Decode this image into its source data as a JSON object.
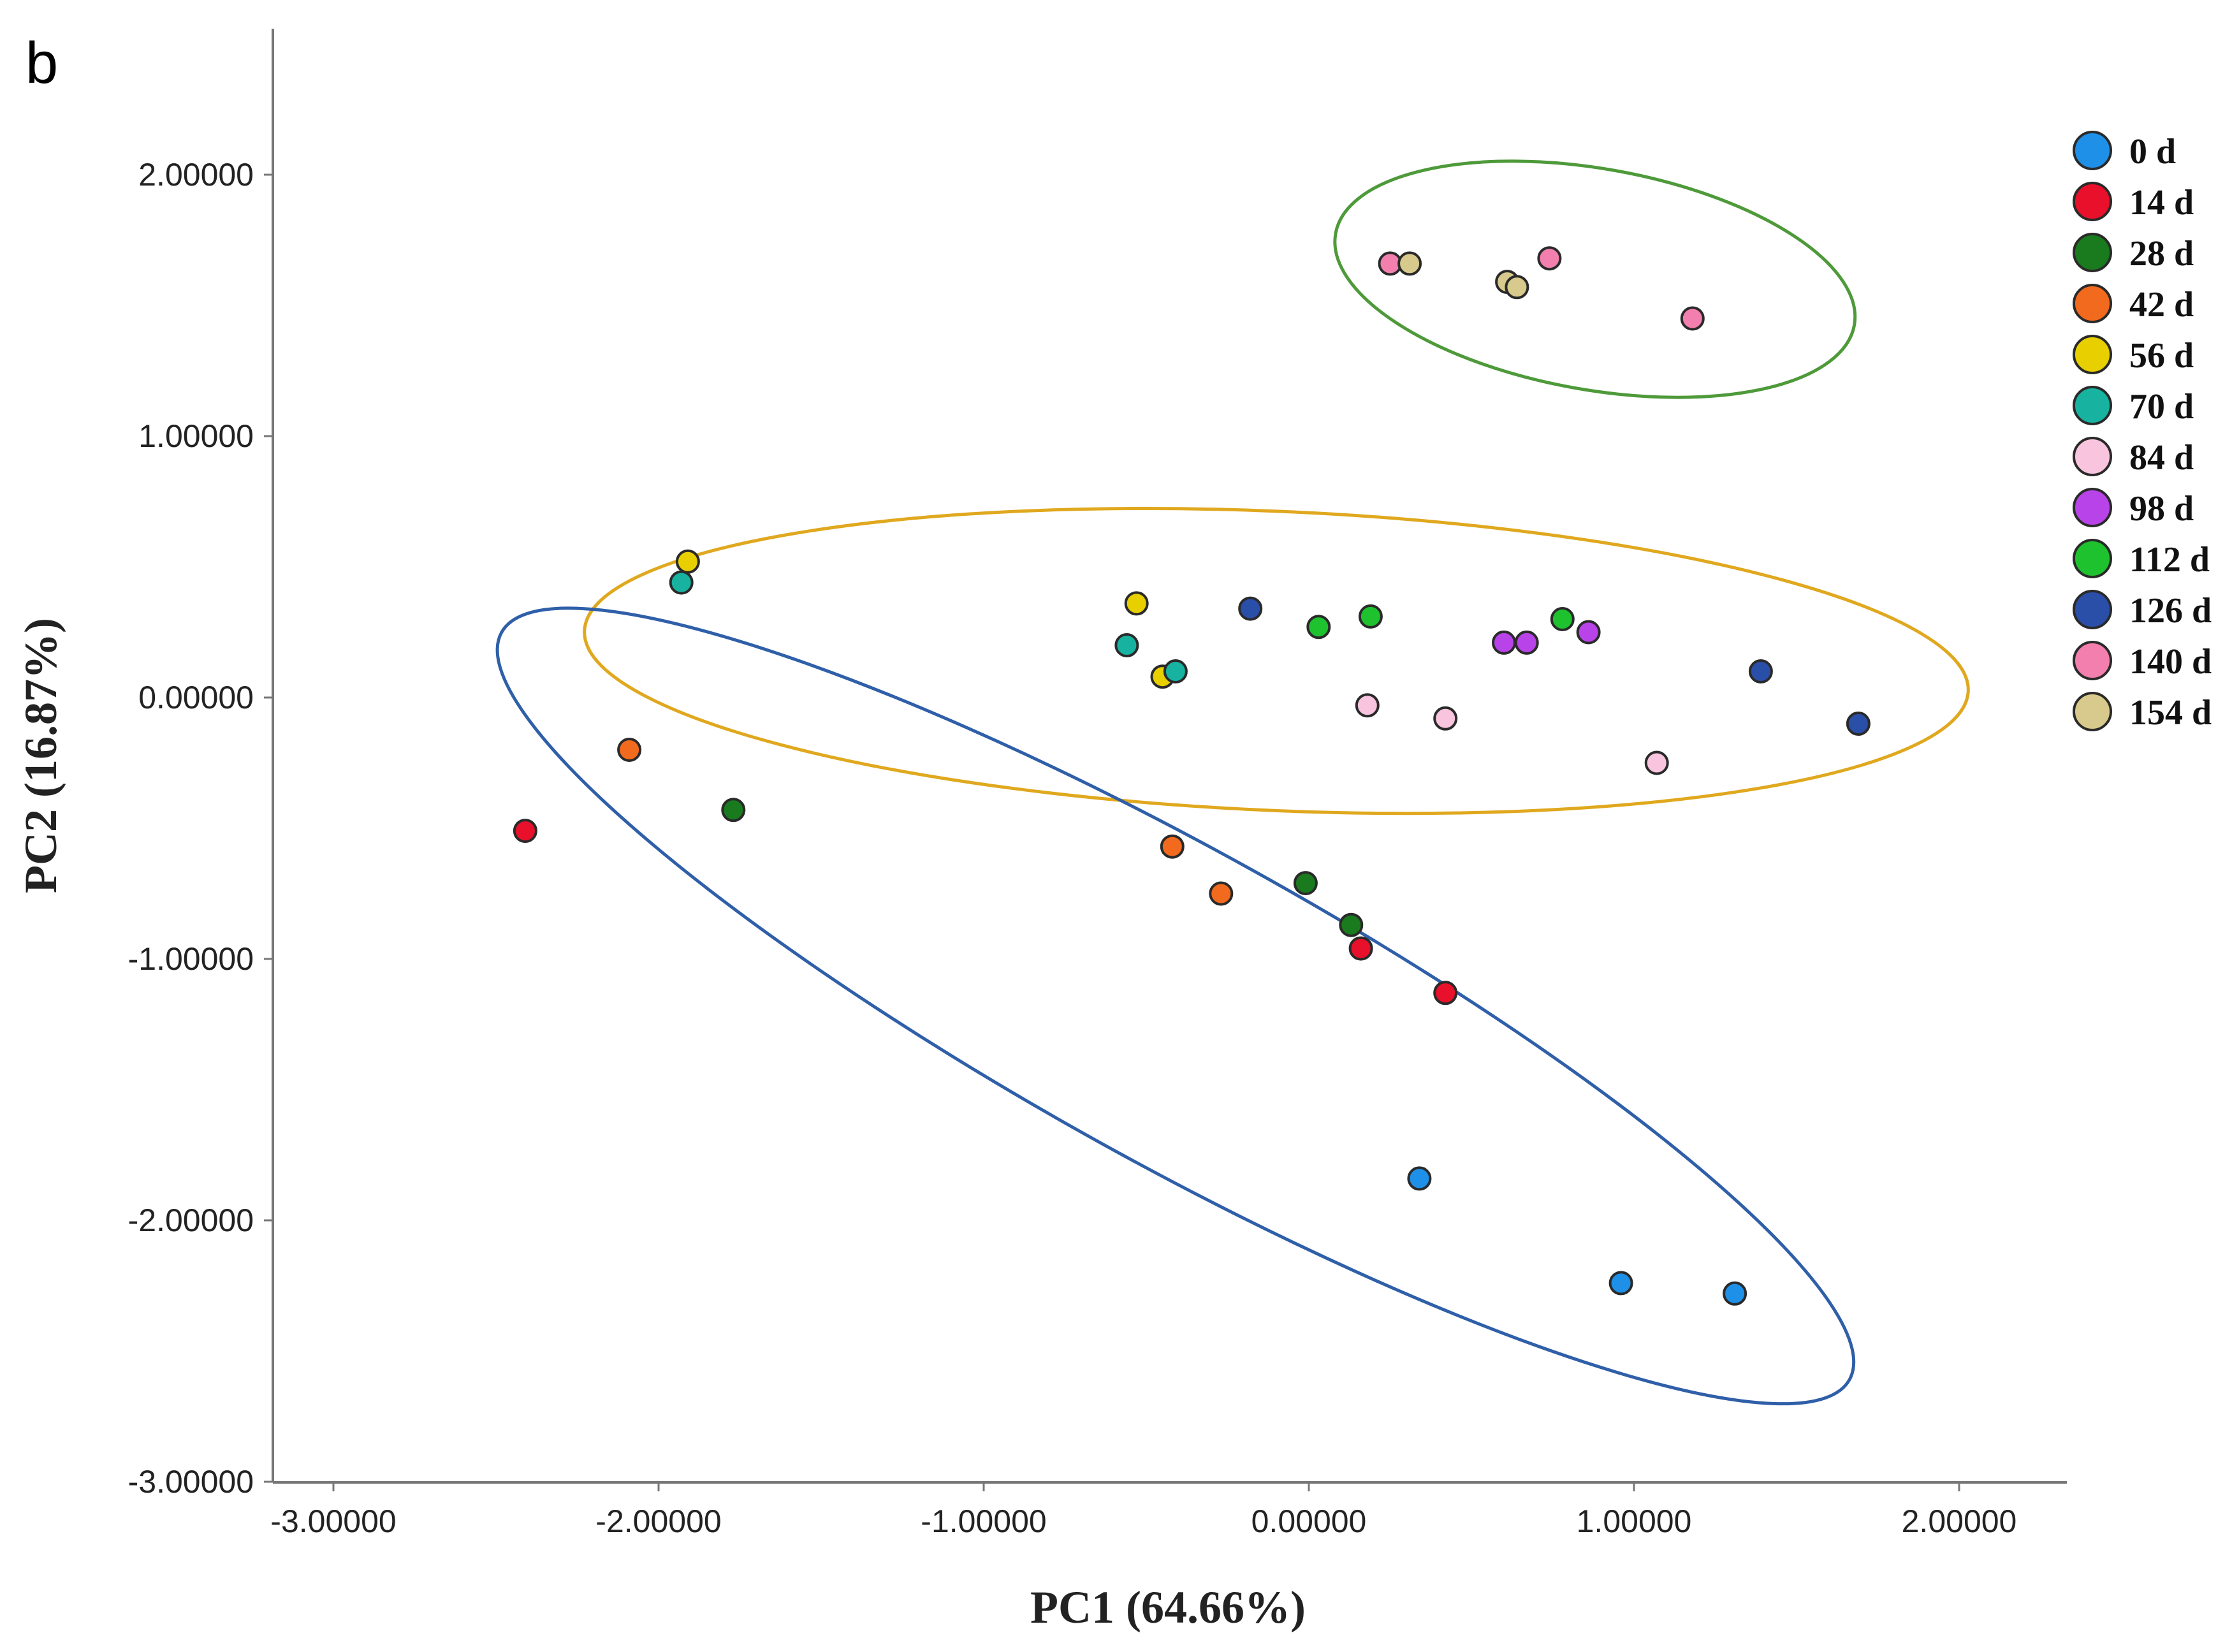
{
  "panel_label": "b",
  "chart_data": {
    "type": "scatter",
    "title": "",
    "xlabel": "PC1 (64.66%)",
    "ylabel": "PC2 (16.87%)",
    "xlim": [
      -3.3,
      2.3
    ],
    "ylim": [
      -3.0,
      2.55
    ],
    "x_ticks": [
      {
        "value": -3,
        "label": "-3.00000"
      },
      {
        "value": -2,
        "label": "-2.00000"
      },
      {
        "value": -1,
        "label": "-1.00000"
      },
      {
        "value": 0,
        "label": "0.00000"
      },
      {
        "value": 1,
        "label": "1.00000"
      },
      {
        "value": 2,
        "label": "2.00000"
      }
    ],
    "y_ticks": [
      {
        "value": 2,
        "label": "2.00000"
      },
      {
        "value": 1,
        "label": "1.00000"
      },
      {
        "value": 0,
        "label": "0.00000"
      },
      {
        "value": -1,
        "label": "-1.00000"
      },
      {
        "value": -2,
        "label": "-2.00000"
      },
      {
        "value": -3,
        "label": "-3.00000"
      }
    ],
    "grid": false,
    "legend_position": "top-right",
    "series": [
      {
        "name": "0 d",
        "color": "#1E90E8",
        "points": [
          [
            0.34,
            -1.84
          ],
          [
            0.96,
            -2.24
          ],
          [
            1.31,
            -2.28
          ]
        ]
      },
      {
        "name": "14 d",
        "color": "#E8102A",
        "points": [
          [
            -2.41,
            -0.51
          ],
          [
            0.16,
            -0.96
          ],
          [
            0.42,
            -1.13
          ]
        ]
      },
      {
        "name": "28 d",
        "color": "#1A7A1E",
        "points": [
          [
            -1.77,
            -0.43
          ],
          [
            -0.01,
            -0.71
          ],
          [
            0.13,
            -0.87
          ]
        ]
      },
      {
        "name": "42 d",
        "color": "#F26A1E",
        "points": [
          [
            -2.09,
            -0.2
          ],
          [
            -0.42,
            -0.57
          ],
          [
            -0.27,
            -0.75
          ]
        ]
      },
      {
        "name": "56 d",
        "color": "#E8D000",
        "points": [
          [
            -1.91,
            0.52
          ],
          [
            -0.53,
            0.36
          ],
          [
            -0.45,
            0.08
          ]
        ]
      },
      {
        "name": "70 d",
        "color": "#17B3A0",
        "points": [
          [
            -1.93,
            0.44
          ],
          [
            -0.56,
            0.2
          ],
          [
            -0.41,
            0.1
          ]
        ]
      },
      {
        "name": "84 d",
        "color": "#F9C4DE",
        "points": [
          [
            0.18,
            -0.03
          ],
          [
            0.42,
            -0.08
          ],
          [
            1.07,
            -0.25
          ]
        ]
      },
      {
        "name": "98 d",
        "color": "#B843E8",
        "points": [
          [
            0.6,
            0.21
          ],
          [
            0.67,
            0.21
          ],
          [
            0.86,
            0.25
          ]
        ]
      },
      {
        "name": "112 d",
        "color": "#1EC22E",
        "points": [
          [
            0.03,
            0.27
          ],
          [
            0.19,
            0.31
          ],
          [
            0.78,
            0.3
          ]
        ]
      },
      {
        "name": "126 d",
        "color": "#2A4FA8",
        "points": [
          [
            -0.18,
            0.34
          ],
          [
            1.39,
            0.1
          ],
          [
            1.69,
            -0.1
          ]
        ]
      },
      {
        "name": "140 d",
        "color": "#F27FAE",
        "points": [
          [
            0.25,
            1.66
          ],
          [
            0.74,
            1.68
          ],
          [
            1.18,
            1.45
          ]
        ]
      },
      {
        "name": "154 d",
        "color": "#D8CA8C",
        "points": [
          [
            0.31,
            1.66
          ],
          [
            0.61,
            1.59
          ],
          [
            0.64,
            1.57
          ]
        ]
      }
    ],
    "ellipses": [
      {
        "name": "top-group",
        "color": "#4E9A3A",
        "center": [
          0.88,
          1.6
        ],
        "rx": 0.81,
        "ry": 0.34,
        "angle_deg": -10
      },
      {
        "name": "middle-group",
        "color": "#E0A81E",
        "center": [
          -0.1,
          0.14
        ],
        "rx": 2.13,
        "ry": 0.46,
        "angle_deg": -2.5
      },
      {
        "name": "bottom-group",
        "color": "#2F5FA8",
        "center": [
          -0.41,
          -1.18
        ],
        "rx": 2.37,
        "ry": 0.48,
        "angle_deg": -29
      }
    ]
  }
}
